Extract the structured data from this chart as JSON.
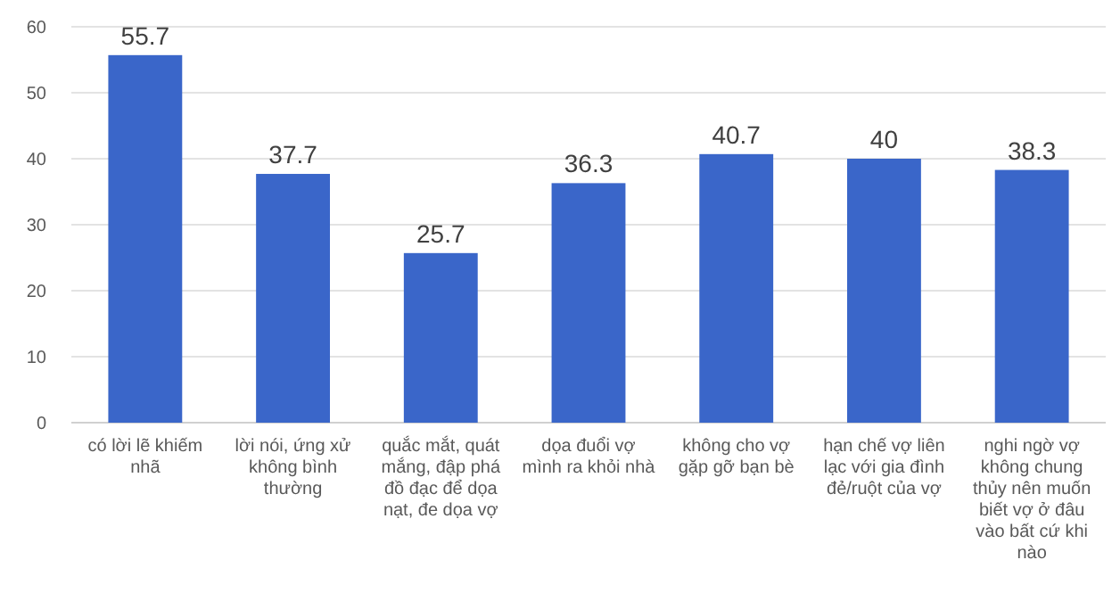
{
  "chart_data": {
    "type": "bar",
    "categories": [
      "có lời lẽ khiếm nhã",
      "lời nói, ứng xử không bình thường",
      "quắc mắt, quát mắng, đập phá đồ đạc để dọa nạt, đe dọa vợ",
      "dọa đuổi vợ mình ra khỏi nhà",
      "không cho vợ gặp gỡ bạn bè",
      "hạn chế vợ liên lạc với gia đình đẻ/ruột của vợ",
      "nghi ngờ vợ không chung thủy nên muốn biết vợ ở đâu vào bất cứ khi nào"
    ],
    "values": [
      55.7,
      37.7,
      25.7,
      36.3,
      40.7,
      40,
      38.3
    ],
    "color": "#3a66c9",
    "ylim": [
      0,
      60
    ],
    "yticks": [
      0,
      10,
      20,
      30,
      40,
      50,
      60
    ],
    "grid": "y",
    "data_labels": true
  }
}
